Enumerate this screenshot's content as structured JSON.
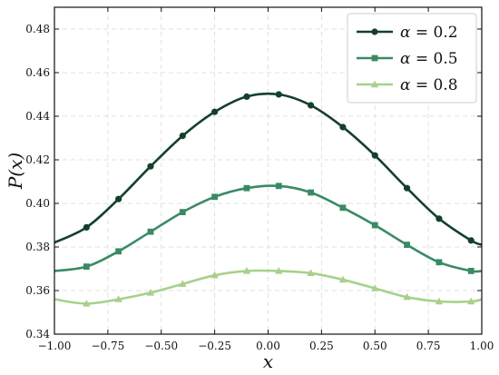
{
  "chart_data": {
    "type": "line",
    "xlabel": "x",
    "ylabel": "P(x)",
    "xlim": [
      -1.0,
      1.0
    ],
    "ylim": [
      0.34,
      0.49
    ],
    "xticks": [
      -1.0,
      -0.75,
      -0.5,
      -0.25,
      0.0,
      0.25,
      0.5,
      0.75,
      1.0
    ],
    "xtick_labels": [
      "−1.00",
      "−0.75",
      "−0.50",
      "−0.25",
      "0.00",
      "0.25",
      "0.50",
      "0.75",
      "1.00"
    ],
    "yticks": [
      0.34,
      0.36,
      0.38,
      0.4,
      0.42,
      0.44,
      0.46,
      0.48
    ],
    "ytick_labels": [
      "0.34",
      "0.36",
      "0.38",
      "0.40",
      "0.42",
      "0.44",
      "0.46",
      "0.48"
    ],
    "grid": true,
    "legend_position": "top-right",
    "series": [
      {
        "name": "α = 0.2",
        "legend_symbol": "α",
        "legend_value": "= 0.2",
        "color": "#14402b",
        "marker": "circle",
        "x": [
          -1.0,
          -0.85,
          -0.7,
          -0.55,
          -0.4,
          -0.25,
          -0.1,
          0.05,
          0.2,
          0.35,
          0.5,
          0.65,
          0.8,
          0.95,
          1.0
        ],
        "y": [
          0.382,
          0.389,
          0.402,
          0.417,
          0.431,
          0.442,
          0.449,
          0.45,
          0.445,
          0.435,
          0.422,
          0.407,
          0.393,
          0.383,
          0.381
        ]
      },
      {
        "name": "α = 0.5",
        "legend_symbol": "α",
        "legend_value": "= 0.5",
        "color": "#3a8a64",
        "marker": "square",
        "x": [
          -1.0,
          -0.85,
          -0.7,
          -0.55,
          -0.4,
          -0.25,
          -0.1,
          0.05,
          0.2,
          0.35,
          0.5,
          0.65,
          0.8,
          0.95,
          1.0
        ],
        "y": [
          0.369,
          0.371,
          0.378,
          0.387,
          0.396,
          0.403,
          0.407,
          0.408,
          0.405,
          0.398,
          0.39,
          0.381,
          0.373,
          0.369,
          0.369
        ]
      },
      {
        "name": "α = 0.8",
        "legend_symbol": "α",
        "legend_value": "= 0.8",
        "color": "#a7d18a",
        "marker": "triangle",
        "x": [
          -1.0,
          -0.85,
          -0.7,
          -0.55,
          -0.4,
          -0.25,
          -0.1,
          0.05,
          0.2,
          0.35,
          0.5,
          0.65,
          0.8,
          0.95,
          1.0
        ],
        "y": [
          0.356,
          0.354,
          0.356,
          0.359,
          0.363,
          0.367,
          0.369,
          0.369,
          0.368,
          0.365,
          0.361,
          0.357,
          0.355,
          0.355,
          0.356
        ]
      }
    ]
  }
}
